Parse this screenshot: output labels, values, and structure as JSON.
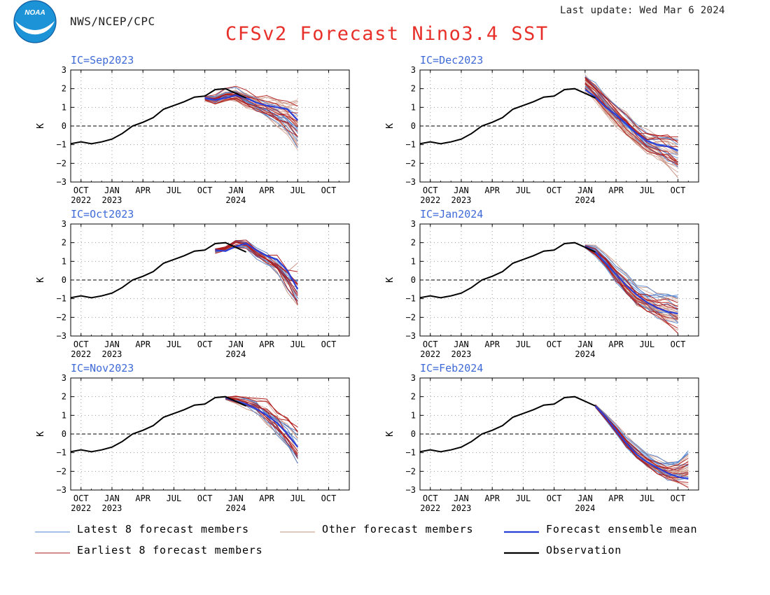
{
  "header": {
    "org": "NWS/NCEP/CPC",
    "last_update": "Last update: Wed Mar 6 2024",
    "title": "CFSv2 Forecast Nino3.4 SST",
    "logo_text": "NOAA"
  },
  "axes": {
    "ylabel": "K",
    "ylim": [
      -3,
      3
    ],
    "yticks": [
      "3",
      "2",
      "1",
      "0",
      "−1",
      "−2",
      "−3"
    ],
    "xlim": [
      "2022-09",
      "2024-12"
    ],
    "xticks": [
      {
        "month": "2022-10",
        "label": "OCT",
        "sub": "2022"
      },
      {
        "month": "2023-01",
        "label": "JAN",
        "sub": "2023"
      },
      {
        "month": "2023-04",
        "label": "APR",
        "sub": ""
      },
      {
        "month": "2023-07",
        "label": "JUL",
        "sub": ""
      },
      {
        "month": "2023-10",
        "label": "OCT",
        "sub": ""
      },
      {
        "month": "2024-01",
        "label": "JAN",
        "sub": "2024"
      },
      {
        "month": "2024-04",
        "label": "APR",
        "sub": ""
      },
      {
        "month": "2024-07",
        "label": "JUL",
        "sub": ""
      },
      {
        "month": "2024-10",
        "label": "OCT",
        "sub": ""
      }
    ]
  },
  "legend": [
    {
      "key": "latest",
      "label": "Latest 8 forecast members",
      "color": "#4a7fd0"
    },
    {
      "key": "other",
      "label": "Other forecast members",
      "color": "#c8907e"
    },
    {
      "key": "mean",
      "label": "Forecast ensemble mean",
      "color": "#2a3fd8"
    },
    {
      "key": "earliest",
      "label": "Earliest 8 forecast members",
      "color": "#b01818"
    },
    {
      "key": "obs",
      "label": "Observation",
      "color": "#000000"
    }
  ],
  "chart_data": [
    {
      "type": "line",
      "ic_label": "IC=Sep2023",
      "observation": {
        "start": "2022-09",
        "values": [
          -0.95,
          -0.85,
          -0.95,
          -0.85,
          -0.7,
          -0.4,
          0.0,
          0.2,
          0.45,
          0.9,
          1.1,
          1.3,
          1.55,
          1.6,
          1.95,
          2.0,
          1.75,
          1.5
        ]
      },
      "ensemble_mean": {
        "start": "2023-10",
        "values": [
          1.5,
          1.4,
          1.5,
          1.65,
          1.5,
          1.25,
          1.1,
          1.0,
          0.9,
          0.3
        ]
      },
      "spread": {
        "start": "2023-10",
        "lo": [
          1.3,
          1.0,
          1.1,
          1.0,
          0.6,
          0.4,
          0.1,
          -0.3,
          -0.8,
          -1.5
        ],
        "hi": [
          1.6,
          1.7,
          2.1,
          2.2,
          2.1,
          1.9,
          1.8,
          1.7,
          1.6,
          1.6
        ]
      }
    },
    {
      "type": "line",
      "ic_label": "IC=Dec2023",
      "observation": {
        "start": "2022-09",
        "values": [
          -0.95,
          -0.85,
          -0.95,
          -0.85,
          -0.7,
          -0.4,
          0.0,
          0.2,
          0.45,
          0.9,
          1.1,
          1.3,
          1.55,
          1.6,
          1.95,
          2.0,
          1.75,
          1.5
        ]
      },
      "ensemble_mean": {
        "start": "2024-01",
        "values": [
          1.95,
          1.55,
          1.0,
          0.6,
          0.1,
          -0.4,
          -0.8,
          -1.0,
          -1.1,
          -1.3
        ]
      },
      "spread": {
        "start": "2024-01",
        "lo": [
          1.8,
          1.2,
          0.4,
          -0.4,
          -1.0,
          -1.6,
          -2.0,
          -2.2,
          -2.6,
          -2.9
        ]
      }
    },
    {
      "type": "line",
      "ic_label": "IC=Oct2023",
      "observation": {
        "start": "2022-09",
        "values": [
          -0.95,
          -0.85,
          -0.95,
          -0.85,
          -0.7,
          -0.4,
          0.0,
          0.2,
          0.45,
          0.9,
          1.1,
          1.3,
          1.55,
          1.6,
          1.95,
          2.0,
          1.75,
          1.5
        ]
      },
      "ensemble_mean": {
        "start": "2023-11",
        "values": [
          1.6,
          1.55,
          1.8,
          1.95,
          1.6,
          1.3,
          1.1,
          0.5,
          -0.5
        ]
      },
      "spread": {
        "start": "2023-11",
        "lo": [
          1.4,
          1.5,
          1.5,
          1.4,
          0.8,
          0.3,
          -0.2,
          -1.2,
          -2.2
        ],
        "hi": [
          1.7,
          1.8,
          2.3,
          2.3,
          2.0,
          1.8,
          1.6,
          1.3,
          1.2
        ]
      }
    },
    {
      "type": "line",
      "ic_label": "IC=Jan2024",
      "observation": {
        "start": "2022-09",
        "values": [
          -0.95,
          -0.85,
          -0.95,
          -0.85,
          -0.7,
          -0.4,
          0.0,
          0.2,
          0.45,
          0.9,
          1.1,
          1.3,
          1.55,
          1.6,
          1.95,
          2.0,
          1.75,
          1.5
        ]
      },
      "ensemble_mean": {
        "start": "2024-01",
        "values": [
          1.8,
          1.5,
          0.9,
          0.3,
          -0.3,
          -0.8,
          -1.2,
          -1.5,
          -1.7,
          -1.8
        ]
      },
      "spread": {
        "start": "2024-01",
        "lo": [
          1.7,
          1.2,
          0.5,
          -0.4,
          -1.2,
          -1.9,
          -2.2,
          -2.5,
          -2.8,
          -3.0
        ],
        "hi": [
          1.9,
          1.9,
          1.5,
          1.0,
          0.5,
          0.1,
          -0.2,
          -0.4,
          -0.5,
          -0.6
        ]
      }
    },
    {
      "type": "line",
      "ic_label": "IC=Nov2023",
      "observation": {
        "start": "2022-09",
        "values": [
          -0.95,
          -0.85,
          -0.95,
          -0.85,
          -0.7,
          -0.4,
          0.0,
          0.2,
          0.45,
          0.9,
          1.1,
          1.3,
          1.55,
          1.6,
          1.95,
          2.0,
          1.75,
          1.5
        ]
      },
      "ensemble_mean": {
        "start": "2023-12",
        "values": [
          1.95,
          1.75,
          1.6,
          1.35,
          1.0,
          0.6,
          0.0,
          -0.7
        ]
      },
      "spread": {
        "start": "2023-12",
        "lo": [
          1.8,
          1.5,
          1.2,
          0.6,
          0.0,
          -0.6,
          -1.4,
          -2.3
        ],
        "hi": [
          2.0,
          2.1,
          2.1,
          2.2,
          2.0,
          1.5,
          1.0,
          0.5
        ]
      }
    },
    {
      "type": "line",
      "ic_label": "IC=Feb2024",
      "observation": {
        "start": "2022-09",
        "values": [
          -0.95,
          -0.85,
          -0.95,
          -0.85,
          -0.7,
          -0.4,
          0.0,
          0.2,
          0.45,
          0.9,
          1.1,
          1.3,
          1.55,
          1.6,
          1.95,
          2.0,
          1.75,
          1.5
        ]
      },
      "ensemble_mean": {
        "start": "2024-02",
        "values": [
          1.5,
          0.9,
          0.2,
          -0.5,
          -1.1,
          -1.5,
          -1.8,
          -2.1,
          -2.3,
          -2.4
        ]
      },
      "spread": {
        "start": "2024-02",
        "lo": [
          1.4,
          0.7,
          -0.1,
          -0.9,
          -1.6,
          -2.1,
          -2.5,
          -2.8,
          -2.9,
          -3.0
        ],
        "hi": [
          1.6,
          1.1,
          0.6,
          0.0,
          -0.5,
          -0.8,
          -1.1,
          -1.3,
          -1.3,
          -0.7
        ]
      }
    }
  ]
}
